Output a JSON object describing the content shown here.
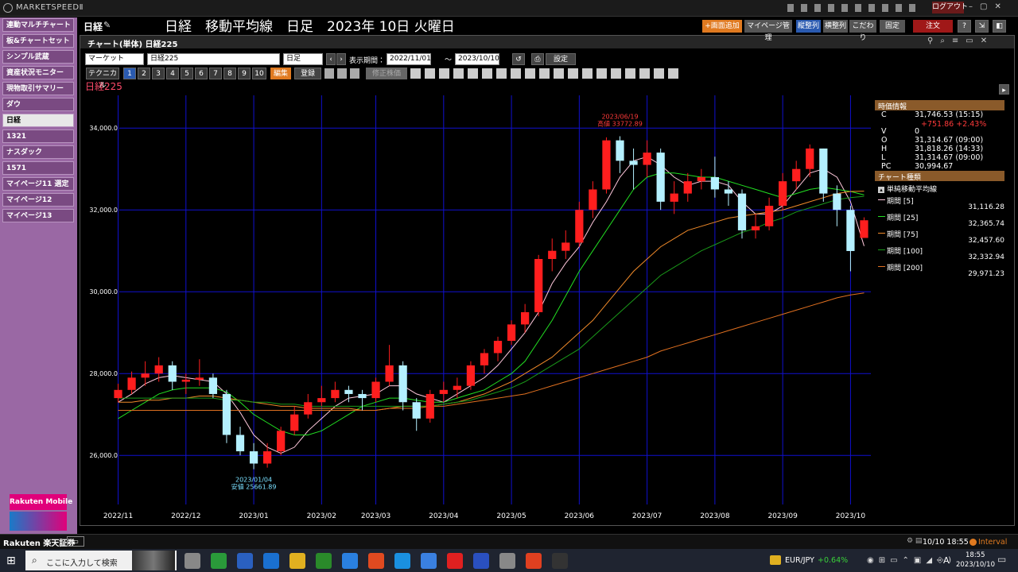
{
  "app": {
    "brand": "MARKETSPEEDⅡ",
    "logout": "ログアウト"
  },
  "header": {
    "page": "日経",
    "title": "日経　移動平均線　日足　2023年 10日 火曜日",
    "buttons": [
      "+画面追加",
      "マイページ管理",
      "縦整列",
      "横整列",
      "こだわり",
      "固定",
      "注文"
    ],
    "help": "?"
  },
  "sidebar": {
    "items": [
      "連動マルチチャート",
      "板&チャートセット",
      "シンプル武蔵",
      "資産状況モニター",
      "現物取引サマリー",
      "ダウ",
      "日経",
      "1321",
      "ナスダック",
      "1571",
      "マイページ11 選定",
      "マイページ12",
      "マイページ13"
    ],
    "ad": "Rakuten Mobile"
  },
  "window": {
    "title": "チャート(単体) 日経225"
  },
  "toolbar": {
    "market": "マーケット",
    "symbol": "日経225",
    "interval": "日足",
    "period_label": "表示期間：",
    "from": "2022/11/01",
    "tilde": "～",
    "to": "2023/10/10",
    "settings": "設定",
    "technical": "テクニカル",
    "slots": [
      "1",
      "2",
      "3",
      "4",
      "5",
      "6",
      "7",
      "8",
      "9",
      "10"
    ],
    "edit": "編集",
    "register": "登録",
    "adjusted": "修正株価"
  },
  "info_panel": {
    "header": "時価情報",
    "rows": [
      [
        "C",
        "31,746.53 (15:15)"
      ],
      [
        "V",
        "0"
      ],
      [
        "O",
        "31,314.67 (09:00)"
      ],
      [
        "H",
        "31,818.26 (14:33)"
      ],
      [
        "L",
        "31,314.67 (09:00)"
      ],
      [
        "PC",
        "30,994.67"
      ]
    ],
    "change": "+751.86  +2.43%",
    "chart_type_header": "チャート種類",
    "indicator": "単純移動平均線"
  },
  "chart_data": {
    "type": "candlestick",
    "title": "日経225",
    "categories": [
      "2022/11",
      null,
      null,
      null,
      null,
      "2022/12",
      null,
      null,
      null,
      null,
      "2023/01",
      null,
      null,
      null,
      null,
      "2023/02",
      null,
      null,
      null,
      "2023/03",
      null,
      null,
      null,
      null,
      "2023/04",
      null,
      null,
      null,
      null,
      "2023/05",
      null,
      null,
      null,
      null,
      "2023/06",
      null,
      null,
      null,
      null,
      "2023/07",
      null,
      null,
      null,
      null,
      "2023/08",
      null,
      null,
      null,
      null,
      "2023/09",
      null,
      null,
      null,
      null,
      "2023/10",
      null
    ],
    "open": [
      27400,
      27600,
      27900,
      28000,
      28200,
      27800,
      27850,
      27900,
      27500,
      26500,
      26100,
      25800,
      26100,
      26600,
      27000,
      27300,
      27400,
      27600,
      27500,
      27400,
      27800,
      28200,
      27300,
      26900,
      27500,
      27600,
      27700,
      28200,
      28500,
      28800,
      29200,
      29500,
      30800,
      31000,
      31200,
      32000,
      32500,
      33700,
      33200,
      33100,
      33400,
      32200,
      32400,
      32700,
      32800,
      32500,
      32400,
      31500,
      31600,
      32100,
      32700,
      33000,
      33500,
      32400,
      32000,
      31314.67
    ],
    "high": [
      27750,
      28050,
      28300,
      28400,
      28300,
      28000,
      28350,
      28000,
      27600,
      26700,
      26300,
      26300,
      26700,
      27200,
      27500,
      27700,
      27800,
      27700,
      27600,
      27900,
      28700,
      28300,
      27400,
      27600,
      27800,
      27900,
      28300,
      28600,
      28900,
      29300,
      29700,
      30900,
      31300,
      31500,
      32200,
      32700,
      33772.89,
      33800,
      33500,
      33700,
      33500,
      32700,
      32900,
      33000,
      33300,
      32700,
      32500,
      31900,
      32300,
      32900,
      33200,
      33600,
      33500,
      32600,
      32100,
      31818.26
    ],
    "low": [
      27300,
      27500,
      27700,
      27800,
      27600,
      27500,
      27700,
      27400,
      26300,
      26000,
      25661.89,
      25700,
      26000,
      26500,
      26900,
      27200,
      27300,
      27300,
      27100,
      27300,
      27700,
      27100,
      26600,
      26800,
      27300,
      27400,
      27600,
      28000,
      28300,
      28700,
      29000,
      29400,
      30500,
      30800,
      31100,
      31800,
      32400,
      32900,
      32500,
      32800,
      32000,
      31900,
      32200,
      32500,
      32300,
      32100,
      31300,
      31300,
      31500,
      32000,
      32500,
      32800,
      32200,
      31600,
      30500,
      31314.67
    ],
    "close": [
      27600,
      27900,
      28000,
      28200,
      27800,
      27850,
      27900,
      27500,
      26500,
      26100,
      25800,
      26100,
      26600,
      27000,
      27300,
      27400,
      27600,
      27500,
      27400,
      27800,
      28200,
      27300,
      26900,
      27500,
      27600,
      27700,
      28200,
      28500,
      28800,
      29200,
      29500,
      30800,
      31000,
      31200,
      32000,
      32500,
      33700,
      33200,
      33100,
      33400,
      32200,
      32400,
      32700,
      32800,
      32500,
      32400,
      31500,
      31600,
      32100,
      32700,
      33000,
      33500,
      32400,
      32000,
      30994.67,
      31746.53
    ],
    "up_color": "#ff1e1e",
    "down_color": "#b4f0ff",
    "series": [
      {
        "name": "期間 [5]",
        "color": "#ffc8dc",
        "last_label": "31,116.28",
        "values": [
          27300,
          27500,
          27750,
          27900,
          27950,
          27900,
          27850,
          27800,
          27500,
          27050,
          26500,
          26200,
          26050,
          26200,
          26600,
          26900,
          27200,
          27400,
          27450,
          27500,
          27700,
          27700,
          27500,
          27400,
          27300,
          27500,
          27700,
          27900,
          28200,
          28600,
          29000,
          29500,
          30200,
          30700,
          31100,
          31700,
          32200,
          32800,
          33200,
          33300,
          33100,
          32800,
          32600,
          32700,
          32700,
          32600,
          32200,
          31900,
          31900,
          32100,
          32500,
          32900,
          33000,
          32800,
          32200,
          31116.28
        ]
      },
      {
        "name": "期間 [25]",
        "color": "#22e022",
        "last_label": "32,365.74",
        "values": [
          26900,
          27100,
          27300,
          27500,
          27600,
          27650,
          27650,
          27650,
          27550,
          27300,
          27000,
          26800,
          26600,
          26500,
          26500,
          26600,
          26800,
          27000,
          27200,
          27300,
          27400,
          27400,
          27350,
          27300,
          27300,
          27400,
          27500,
          27600,
          27800,
          28000,
          28300,
          28800,
          29300,
          29900,
          30500,
          31000,
          31500,
          32000,
          32500,
          32800,
          32900,
          32900,
          32850,
          32800,
          32800,
          32700,
          32600,
          32500,
          32400,
          32300,
          32400,
          32500,
          32550,
          32500,
          32450,
          32365.74
        ]
      },
      {
        "name": "期間 [75]",
        "color": "#f08a2a",
        "last_label": "32,457.60",
        "values": [
          27300,
          27300,
          27350,
          27350,
          27400,
          27400,
          27450,
          27450,
          27400,
          27350,
          27300,
          27250,
          27200,
          27200,
          27150,
          27150,
          27150,
          27150,
          27100,
          27100,
          27150,
          27200,
          27200,
          27200,
          27250,
          27300,
          27400,
          27500,
          27650,
          27800,
          28000,
          28200,
          28400,
          28700,
          29000,
          29300,
          29700,
          30100,
          30500,
          30800,
          31100,
          31300,
          31500,
          31600,
          31700,
          31800,
          31850,
          31900,
          31950,
          32000,
          32100,
          32200,
          32300,
          32400,
          32450,
          32457.6
        ]
      },
      {
        "name": "期間 [100]",
        "color": "#1a9a1a",
        "last_label": "32,332.94",
        "values": [
          27400,
          27400,
          27400,
          27400,
          27400,
          27400,
          27400,
          27400,
          27350,
          27350,
          27300,
          27300,
          27250,
          27250,
          27200,
          27200,
          27200,
          27200,
          27200,
          27200,
          27200,
          27200,
          27200,
          27200,
          27250,
          27300,
          27350,
          27450,
          27550,
          27650,
          27800,
          28000,
          28200,
          28400,
          28600,
          28900,
          29200,
          29500,
          29800,
          30100,
          30400,
          30600,
          30800,
          31000,
          31150,
          31300,
          31450,
          31550,
          31700,
          31800,
          31950,
          32050,
          32150,
          32250,
          32300,
          32332.94
        ]
      },
      {
        "name": "期間 [200]",
        "color": "#e07020",
        "last_label": "29,971.23",
        "values": [
          27100,
          27100,
          27100,
          27100,
          27100,
          27100,
          27100,
          27100,
          27100,
          27100,
          27100,
          27100,
          27100,
          27100,
          27100,
          27100,
          27100,
          27100,
          27100,
          27100,
          27150,
          27150,
          27150,
          27200,
          27200,
          27250,
          27300,
          27350,
          27400,
          27450,
          27500,
          27600,
          27700,
          27800,
          27900,
          28000,
          28100,
          28200,
          28300,
          28400,
          28550,
          28650,
          28750,
          28850,
          28950,
          29050,
          29150,
          29250,
          29350,
          29450,
          29550,
          29650,
          29750,
          29850,
          29920,
          29971.23
        ]
      }
    ],
    "ylim": [
      24800,
      34800
    ],
    "yticks": [
      {
        "value": 26000,
        "label": "26,000.0"
      },
      {
        "value": 28000,
        "label": "28,000.0"
      },
      {
        "value": 30000,
        "label": "30,000.0"
      },
      {
        "value": 32000,
        "label": "32,000.0"
      },
      {
        "value": 34000,
        "label": "34,000.0"
      }
    ],
    "grid": true,
    "grid_color": "#1010d0",
    "annotations": {
      "high": [
        "2023/06/19",
        "高値 33772.89"
      ],
      "low": [
        "2023/01/04",
        "安値 25661.89"
      ]
    }
  },
  "status_bar": {
    "brand": "Rakuten 楽天証券",
    "time": "10/10 18:55",
    "interval": "Interval"
  },
  "taskbar": {
    "search": "ここに入力して検索",
    "pair": "EUR/JPY",
    "change": "+0.64%",
    "ime": "A",
    "time": "18:55",
    "date": "2023/10/10"
  }
}
